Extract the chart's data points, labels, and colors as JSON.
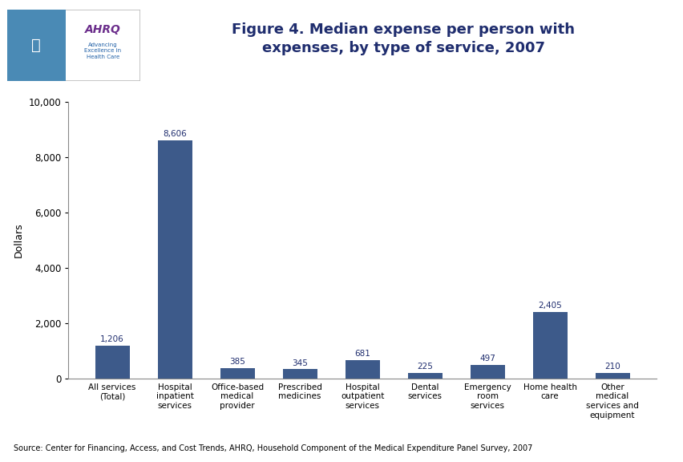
{
  "categories": [
    "All services\n(Total)",
    "Hospital\ninpatient\nservices",
    "Office-based\nmedical\nprovider",
    "Prescribed\nmedicines",
    "Hospital\noutpatient\nservices",
    "Dental\nservices",
    "Emergency\nroom\nservices",
    "Home health\ncare",
    "Other\nmedical\nservices and\nequipment"
  ],
  "values": [
    1206,
    8606,
    385,
    345,
    681,
    225,
    497,
    2405,
    210
  ],
  "bar_color": "#3d5a8a",
  "title_line1": "Figure 4. Median expense per person with",
  "title_line2": "expenses, by type of service, 2007",
  "ylabel": "Dollars",
  "ylim": [
    0,
    10000
  ],
  "yticks": [
    0,
    2000,
    4000,
    6000,
    8000,
    10000
  ],
  "ytick_labels": [
    "0",
    "2,000",
    "4,000",
    "6,000",
    "8,000",
    "10,000"
  ],
  "title_color": "#1f2d6e",
  "title_fontsize": 13,
  "bar_value_labels": [
    "1,206",
    "8,606",
    "385",
    "345",
    "681",
    "225",
    "497",
    "2,405",
    "210"
  ],
  "source_text": "Source: Center for Financing, Access, and Cost Trends, AHRQ, Household Component of the Medical Expenditure Panel Survey, 2007",
  "background_color": "#ffffff",
  "header_line_color": "#2e2774",
  "ylabel_fontsize": 9,
  "tick_label_fontsize": 7.5,
  "value_label_fontsize": 7.5,
  "source_fontsize": 7,
  "text_color": "#1f2d6e",
  "logo_border_color": "#cccccc",
  "logo_left_bg": "#4a8ab5",
  "logo_ahrq_color": "#6b2d8b",
  "logo_subtitle_color": "#1f5fa6"
}
